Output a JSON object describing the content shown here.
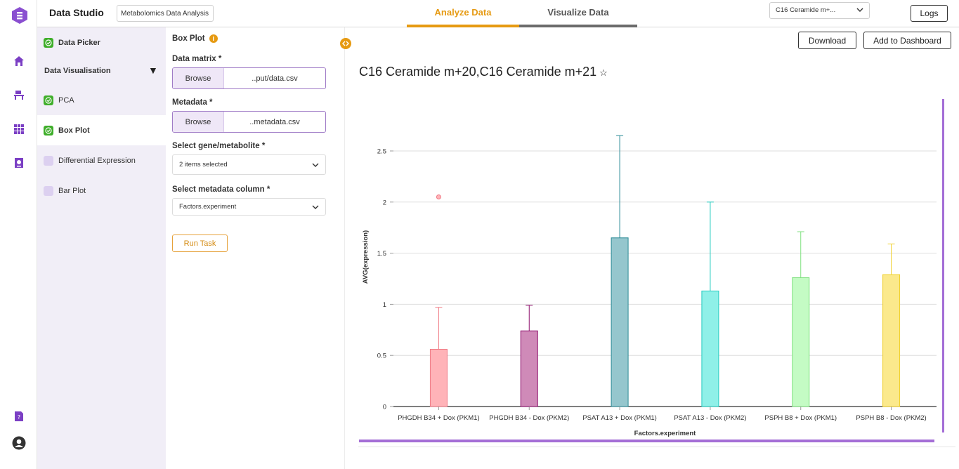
{
  "app": {
    "title": "Data Studio",
    "project_name": "Metabolomics Data Analysis"
  },
  "tabs": [
    {
      "label": "Analyze Data",
      "active": true
    },
    {
      "label": "Visualize Data",
      "active": false
    }
  ],
  "header": {
    "metabolite_select": "C16 Ceramide m+...",
    "logs_label": "Logs"
  },
  "rail_icons": [
    "logo-icon",
    "home-icon",
    "workbench-icon",
    "apps-grid-icon",
    "dataset-icon",
    "help-doc-icon",
    "user-avatar-icon"
  ],
  "sidebar": {
    "items": [
      {
        "label": "Data Picker",
        "checked": true,
        "bold": true
      },
      {
        "label": "PCA",
        "checked": true
      },
      {
        "label": "Box Plot",
        "checked": true,
        "active": true,
        "bold": true
      },
      {
        "label": "Differential Expression",
        "checked": false
      },
      {
        "label": "Bar Plot",
        "checked": false
      }
    ],
    "section_label": "Data Visualisation"
  },
  "form": {
    "title": "Box Plot",
    "data_matrix_label": "Data matrix *",
    "data_matrix_browse": "Browse",
    "data_matrix_file": "..put/data.csv",
    "metadata_label": "Metadata *",
    "metadata_browse": "Browse",
    "metadata_file": "..metadata.csv",
    "gene_label": "Select gene/metabolite *",
    "gene_value": "2 items selected",
    "column_label": "Select metadata column *",
    "column_value": "Factors.experiment",
    "run_label": "Run Task"
  },
  "toolbar": {
    "download_label": "Download",
    "dashboard_label": "Add to Dashboard"
  },
  "chart_title": "C16 Ceramide m+20,C16 Ceramide m+21",
  "chart_data": {
    "type": "box",
    "title": "C16 Ceramide m+20,C16 Ceramide m+21",
    "xlabel": "Factors.experiment",
    "ylabel": "AVG(expression)",
    "ylim": [
      0,
      2.8
    ],
    "yticks": [
      0,
      0.5,
      1,
      1.5,
      2,
      2.5
    ],
    "ytick_labels": [
      "0",
      "0.5",
      "1",
      "1.5",
      "2",
      "2.5"
    ],
    "grid": true,
    "categories": [
      "PHGDH B34 + Dox (PKM1)",
      "PHGDH B34 - Dox (PKM2)",
      "PSAT A13 + Dox (PKM1)",
      "PSAT A13 - Dox (PKM2)",
      "PSPH B8 + Dox (PKM1)",
      "PSPH B8 - Dox (PKM2)"
    ],
    "boxes": [
      {
        "q3": 0.56,
        "max": 0.97,
        "fill": "#ffb3b8",
        "stroke": "#f07a85",
        "outlier": 2.05
      },
      {
        "q3": 0.74,
        "max": 0.99,
        "fill": "#cf8ab8",
        "stroke": "#8e0f6c",
        "outlier": null
      },
      {
        "q3": 1.65,
        "max": 2.65,
        "fill": "#95c6cd",
        "stroke": "#2a8a96",
        "outlier": null
      },
      {
        "q3": 1.13,
        "max": 2.0,
        "fill": "#8ff0e8",
        "stroke": "#22cbbf",
        "outlier": null
      },
      {
        "q3": 1.26,
        "max": 1.71,
        "fill": "#c4fbc4",
        "stroke": "#7ee07e",
        "outlier": null
      },
      {
        "q3": 1.29,
        "max": 1.59,
        "fill": "#fbe98c",
        "stroke": "#f0cf2a",
        "outlier": null
      }
    ],
    "accent": "#a46ed6"
  }
}
